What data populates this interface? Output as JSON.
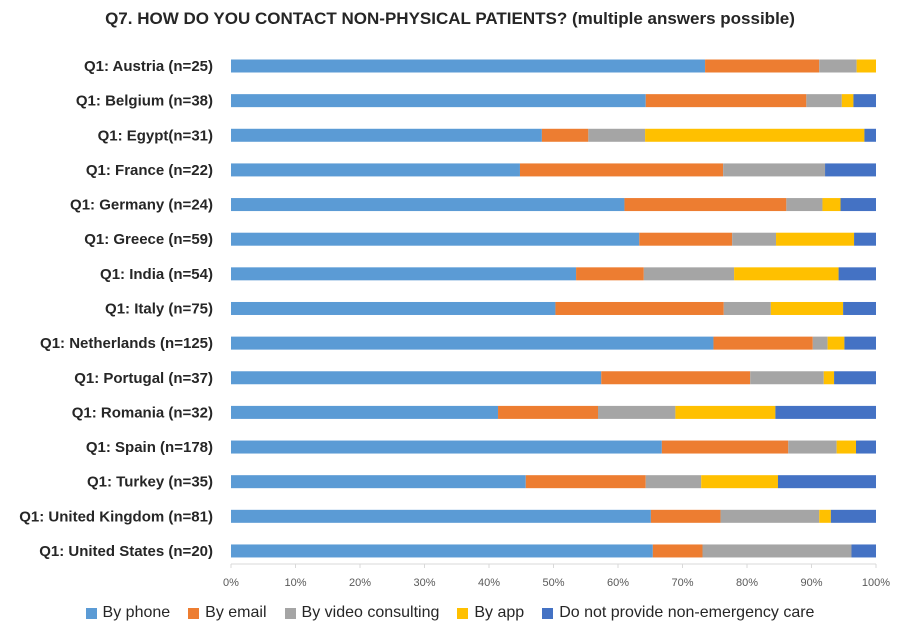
{
  "chart_data": {
    "type": "bar",
    "orientation": "horizontal",
    "stacked": "percent",
    "title": "Q7. HOW DO YOU CONTACT NON-PHYSICAL PATIENTS? (multiple answers possible)",
    "categories": [
      "Q1: Austria (n=25)",
      "Q1: Belgium (n=38)",
      "Q1: Egypt(n=31)",
      "Q1: France (n=22)",
      "Q1: Germany (n=24)",
      "Q1: Greece (n=59)",
      "Q1: India (n=54)",
      "Q1: Italy (n=75)",
      "Q1: Netherlands (n=125)",
      "Q1: Portugal (n=37)",
      "Q1: Romania (n=32)",
      "Q1: Spain (n=178)",
      "Q1: Turkey (n=35)",
      "Q1: United Kingdom (n=81)",
      "Q1: United States (n=20)"
    ],
    "series": [
      {
        "name": "By phone",
        "color": "#5B9BD5",
        "values": [
          73.5,
          64.3,
          48.2,
          44.8,
          61.0,
          63.3,
          53.5,
          50.3,
          74.8,
          57.4,
          41.4,
          66.8,
          45.7,
          65.1,
          65.4
        ]
      },
      {
        "name": "By email",
        "color": "#ED7D31",
        "values": [
          17.7,
          24.9,
          7.2,
          31.5,
          25.1,
          14.4,
          10.5,
          26.1,
          15.4,
          23.1,
          15.5,
          19.6,
          18.6,
          10.8,
          7.7
        ]
      },
      {
        "name": "By video consulting",
        "color": "#A5A5A5",
        "values": [
          5.8,
          5.5,
          8.8,
          15.8,
          5.6,
          6.8,
          14.0,
          7.3,
          2.3,
          11.4,
          12.0,
          7.5,
          8.6,
          15.3,
          23.1
        ]
      },
      {
        "name": "By app",
        "color": "#FFC000",
        "values": [
          3.0,
          1.8,
          34.0,
          0.0,
          2.8,
          12.1,
          16.2,
          11.2,
          2.6,
          1.6,
          15.5,
          3.0,
          11.9,
          1.8,
          0.0
        ]
      },
      {
        "name": "Do not provide non-emergency care",
        "color": "#4472C4",
        "values": [
          0.0,
          3.5,
          1.8,
          7.9,
          5.5,
          3.4,
          5.8,
          5.1,
          4.9,
          6.5,
          15.6,
          3.1,
          15.2,
          7.0,
          3.8
        ]
      }
    ],
    "xlim": [
      0,
      100
    ],
    "xticks": [
      "0%",
      "10%",
      "20%",
      "30%",
      "40%",
      "50%",
      "60%",
      "70%",
      "80%",
      "90%",
      "100%"
    ],
    "legend_position": "bottom",
    "grid": false
  }
}
